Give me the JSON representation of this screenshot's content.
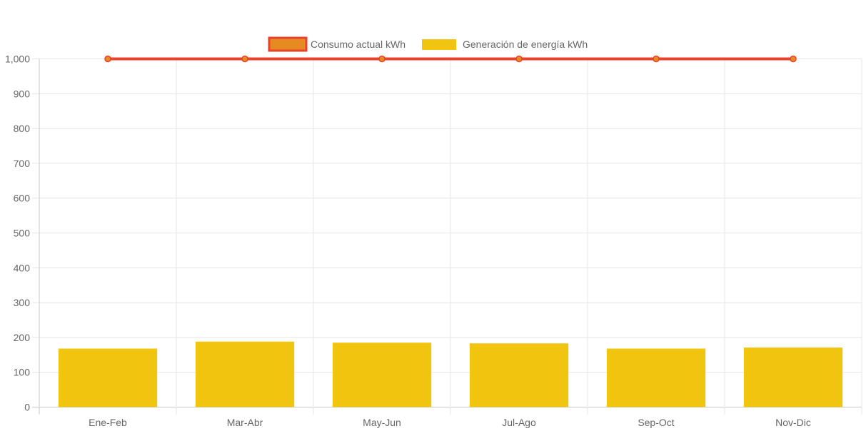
{
  "chart_data": {
    "type": "bar",
    "categories": [
      "Ene-Feb",
      "Mar-Abr",
      "May-Jun",
      "Jul-Ago",
      "Sep-Oct",
      "Nov-Dic"
    ],
    "series": [
      {
        "name": "Consumo actual kWh",
        "type": "line",
        "values": [
          1000,
          1000,
          1000,
          1000,
          1000,
          1000
        ],
        "color": "#e8412c",
        "fill": "#e88a22"
      },
      {
        "name": "Generación de energía kWh",
        "type": "bar",
        "values": [
          168,
          188,
          185,
          183,
          168,
          171
        ],
        "color": "#f1c40f"
      }
    ],
    "yticks": [
      "0",
      "100",
      "200",
      "300",
      "400",
      "500",
      "600",
      "700",
      "800",
      "900",
      "1,000"
    ],
    "ylim": [
      0,
      1000
    ],
    "grid": true,
    "legend_position": "top"
  }
}
